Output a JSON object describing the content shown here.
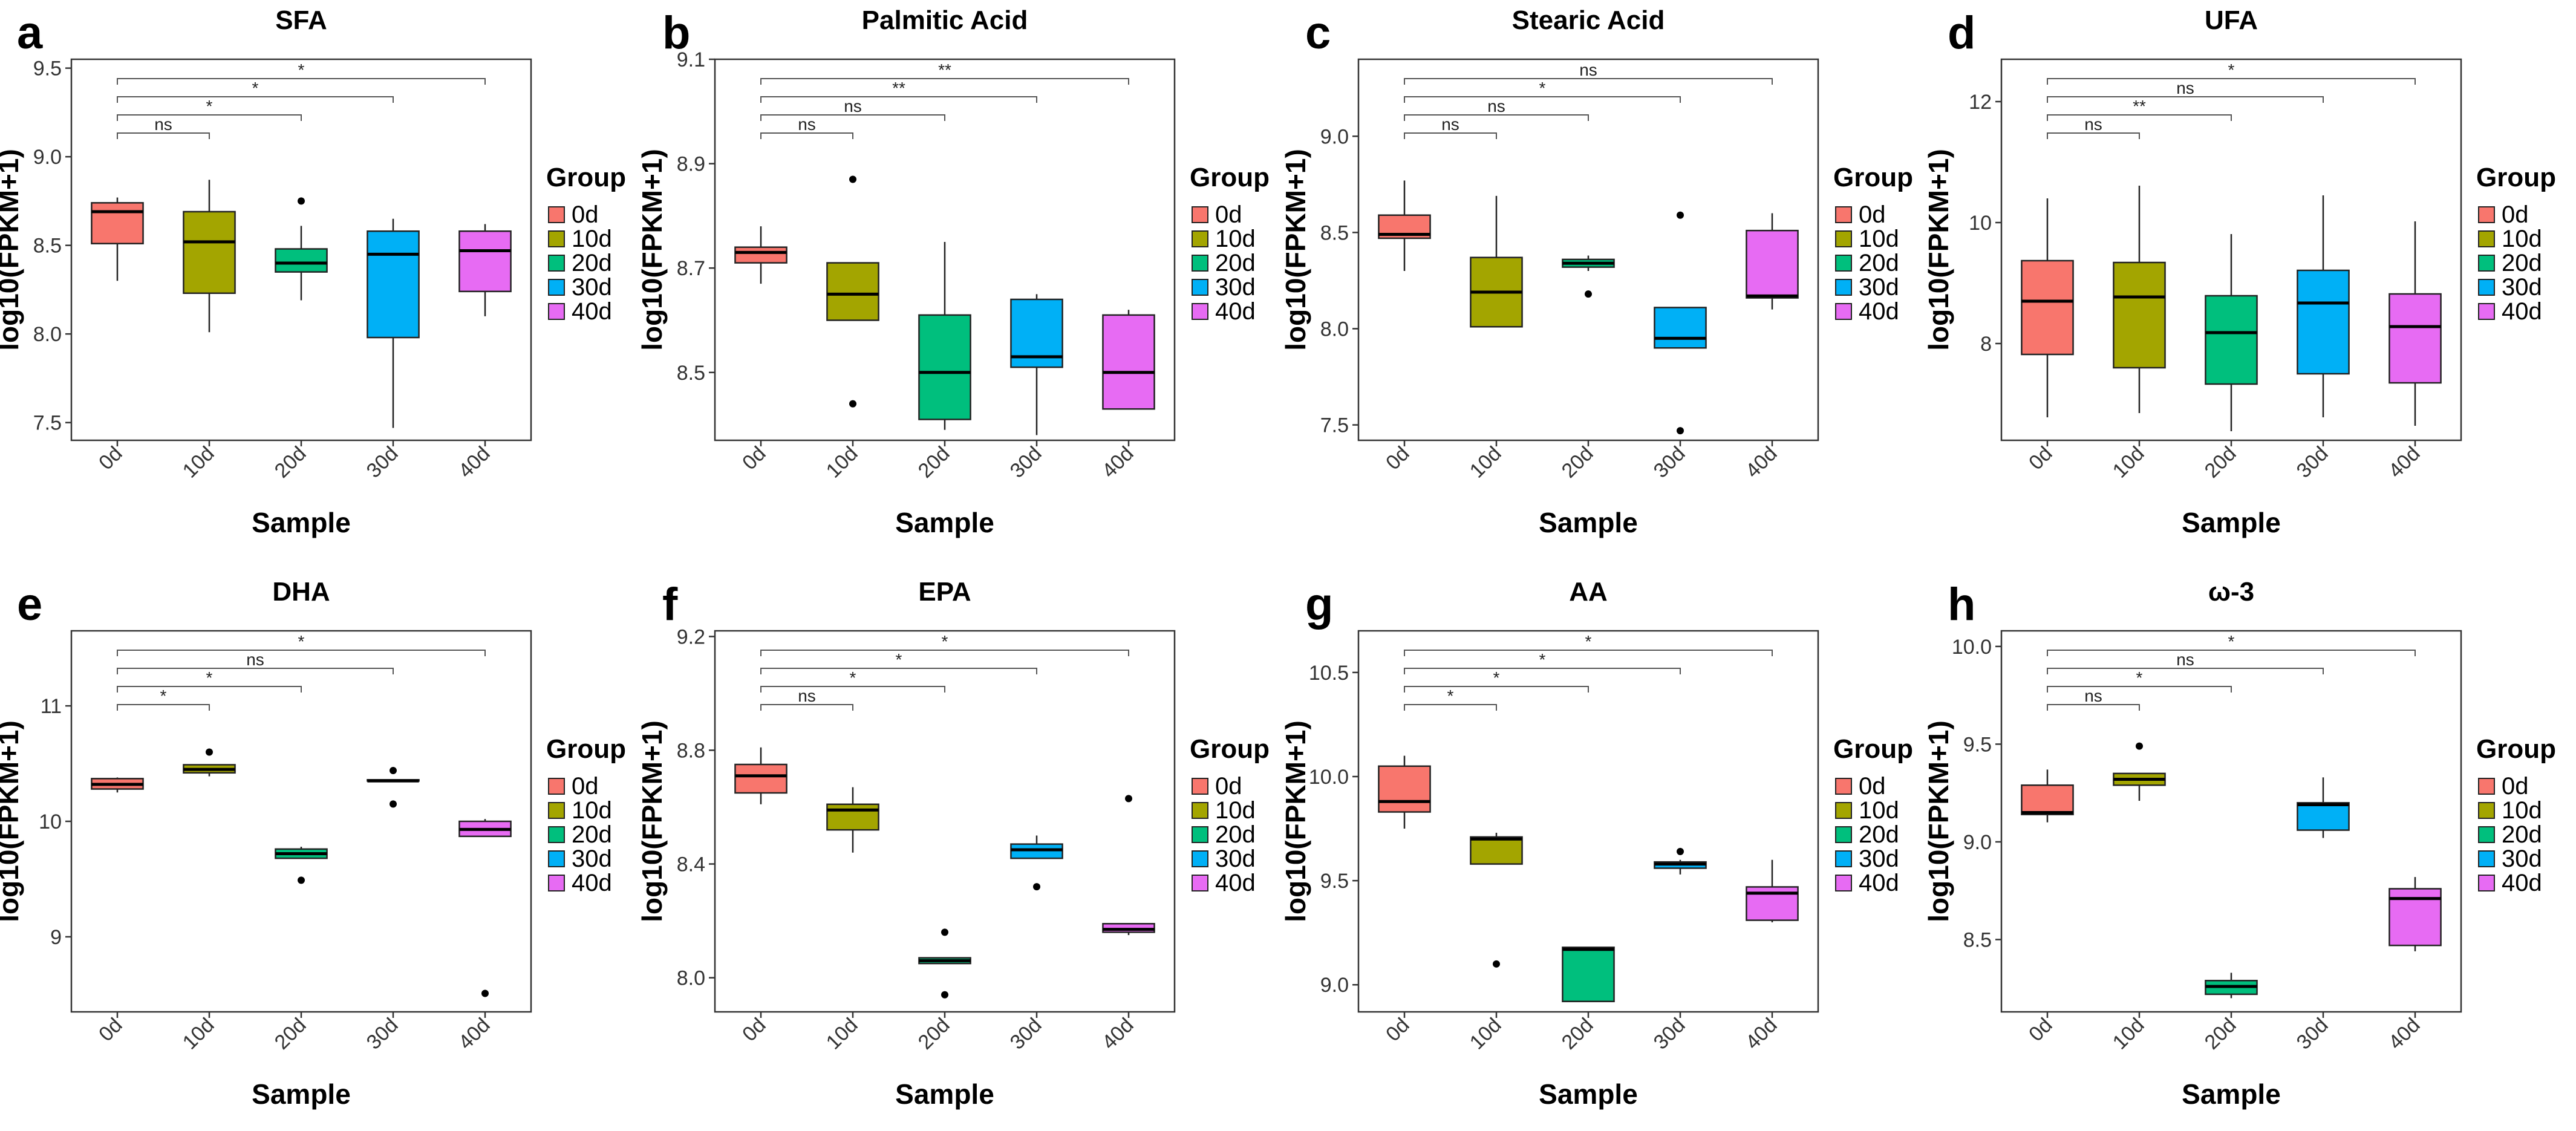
{
  "figure": {
    "group_colors": {
      "0d": "#F8766D",
      "10d": "#A3A500",
      "20d": "#00BF7D",
      "30d": "#00B0F6",
      "40d": "#E76BF3"
    }
  },
  "chart_data": [
    {
      "panel": "a",
      "type": "boxplot",
      "title": "SFA",
      "xlabel": "Sample",
      "ylabel": "log10(FPKM+1)",
      "categories": [
        "0d",
        "10d",
        "20d",
        "30d",
        "40d"
      ],
      "ylim": [
        7.4,
        9.55
      ],
      "yticks": [
        "7.5",
        "8.0",
        "8.5",
        "9.0",
        "9.5"
      ],
      "boxes": [
        {
          "q1": 8.51,
          "median": 8.69,
          "q3": 8.74,
          "whisker_low": 8.3,
          "whisker_high": 8.77,
          "outliers": []
        },
        {
          "q1": 8.23,
          "median": 8.52,
          "q3": 8.69,
          "whisker_low": 8.01,
          "whisker_high": 8.87,
          "outliers": []
        },
        {
          "q1": 8.35,
          "median": 8.4,
          "q3": 8.48,
          "whisker_low": 8.19,
          "whisker_high": 8.61,
          "outliers": [
            8.75
          ]
        },
        {
          "q1": 7.98,
          "median": 8.45,
          "q3": 8.58,
          "whisker_low": 7.47,
          "whisker_high": 8.65,
          "outliers": []
        },
        {
          "q1": 8.24,
          "median": 8.47,
          "q3": 8.58,
          "whisker_low": 8.1,
          "whisker_high": 8.62,
          "outliers": []
        }
      ],
      "comparisons": [
        {
          "from": "0d",
          "to": "10d",
          "label": "ns"
        },
        {
          "from": "0d",
          "to": "20d",
          "label": "*"
        },
        {
          "from": "0d",
          "to": "30d",
          "label": "*"
        },
        {
          "from": "0d",
          "to": "40d",
          "label": "*"
        }
      ],
      "legend": {
        "title": "Group",
        "labels": [
          "0d",
          "10d",
          "20d",
          "30d",
          "40d"
        ]
      }
    },
    {
      "panel": "b",
      "type": "boxplot",
      "title": "Palmitic Acid",
      "xlabel": "Sample",
      "ylabel": "log10(FPKM+1)",
      "categories": [
        "0d",
        "10d",
        "20d",
        "30d",
        "40d"
      ],
      "ylim": [
        8.37,
        9.1
      ],
      "yticks": [
        "8.5",
        "8.7",
        "8.9",
        "9.1"
      ],
      "boxes": [
        {
          "q1": 8.71,
          "median": 8.73,
          "q3": 8.74,
          "whisker_low": 8.67,
          "whisker_high": 8.78,
          "outliers": []
        },
        {
          "q1": 8.6,
          "median": 8.65,
          "q3": 8.71,
          "whisker_low": 8.6,
          "whisker_high": 8.71,
          "outliers": [
            8.44,
            8.87
          ]
        },
        {
          "q1": 8.41,
          "median": 8.5,
          "q3": 8.61,
          "whisker_low": 8.39,
          "whisker_high": 8.75,
          "outliers": []
        },
        {
          "q1": 8.51,
          "median": 8.53,
          "q3": 8.64,
          "whisker_low": 8.38,
          "whisker_high": 8.65,
          "outliers": []
        },
        {
          "q1": 8.43,
          "median": 8.5,
          "q3": 8.61,
          "whisker_low": 8.43,
          "whisker_high": 8.62,
          "outliers": []
        }
      ],
      "comparisons": [
        {
          "from": "0d",
          "to": "10d",
          "label": "ns"
        },
        {
          "from": "0d",
          "to": "20d",
          "label": "ns"
        },
        {
          "from": "0d",
          "to": "30d",
          "label": "**"
        },
        {
          "from": "0d",
          "to": "40d",
          "label": "**"
        }
      ],
      "legend": {
        "title": "Group",
        "labels": [
          "0d",
          "10d",
          "20d",
          "30d",
          "40d"
        ]
      }
    },
    {
      "panel": "c",
      "type": "boxplot",
      "title": "Stearic Acid",
      "xlabel": "Sample",
      "ylabel": "log10(FPKM+1)",
      "categories": [
        "0d",
        "10d",
        "20d",
        "30d",
        "40d"
      ],
      "ylim": [
        7.42,
        9.4
      ],
      "yticks": [
        "7.5",
        "8.0",
        "8.5",
        "9.0"
      ],
      "boxes": [
        {
          "q1": 8.47,
          "median": 8.49,
          "q3": 8.59,
          "whisker_low": 8.3,
          "whisker_high": 8.77,
          "outliers": []
        },
        {
          "q1": 8.01,
          "median": 8.19,
          "q3": 8.37,
          "whisker_low": 8.01,
          "whisker_high": 8.69,
          "outliers": []
        },
        {
          "q1": 8.32,
          "median": 8.34,
          "q3": 8.36,
          "whisker_low": 8.3,
          "whisker_high": 8.38,
          "outliers": [
            8.18
          ]
        },
        {
          "q1": 7.9,
          "median": 7.95,
          "q3": 8.11,
          "whisker_low": 7.9,
          "whisker_high": 8.11,
          "outliers": [
            7.47,
            8.59
          ]
        },
        {
          "q1": 8.16,
          "median": 8.17,
          "q3": 8.51,
          "whisker_low": 8.1,
          "whisker_high": 8.6,
          "outliers": []
        }
      ],
      "comparisons": [
        {
          "from": "0d",
          "to": "10d",
          "label": "ns"
        },
        {
          "from": "0d",
          "to": "20d",
          "label": "ns"
        },
        {
          "from": "0d",
          "to": "30d",
          "label": "*"
        },
        {
          "from": "0d",
          "to": "40d",
          "label": "ns"
        }
      ],
      "legend": {
        "title": "Group",
        "labels": [
          "0d",
          "10d",
          "20d",
          "30d",
          "40d"
        ]
      }
    },
    {
      "panel": "d",
      "type": "boxplot",
      "title": "UFA",
      "xlabel": "Sample",
      "ylabel": "log10(FPKM+1)",
      "categories": [
        "0d",
        "10d",
        "20d",
        "30d",
        "40d"
      ],
      "ylim": [
        6.4,
        12.7
      ],
      "yticks": [
        "8",
        "10",
        "12"
      ],
      "boxes": [
        {
          "q1": 7.82,
          "median": 8.7,
          "q3": 9.37,
          "whisker_low": 6.78,
          "whisker_high": 10.4,
          "outliers": []
        },
        {
          "q1": 7.6,
          "median": 8.77,
          "q3": 9.34,
          "whisker_low": 6.85,
          "whisker_high": 10.61,
          "outliers": []
        },
        {
          "q1": 7.33,
          "median": 8.18,
          "q3": 8.79,
          "whisker_low": 6.55,
          "whisker_high": 9.81,
          "outliers": []
        },
        {
          "q1": 7.5,
          "median": 8.67,
          "q3": 9.21,
          "whisker_low": 6.78,
          "whisker_high": 10.45,
          "outliers": []
        },
        {
          "q1": 7.35,
          "median": 8.28,
          "q3": 8.82,
          "whisker_low": 6.64,
          "whisker_high": 10.02,
          "outliers": []
        }
      ],
      "comparisons": [
        {
          "from": "0d",
          "to": "10d",
          "label": "ns"
        },
        {
          "from": "0d",
          "to": "20d",
          "label": "**"
        },
        {
          "from": "0d",
          "to": "30d",
          "label": "ns"
        },
        {
          "from": "0d",
          "to": "40d",
          "label": "*"
        }
      ],
      "legend": {
        "title": "Group",
        "labels": [
          "0d",
          "10d",
          "20d",
          "30d",
          "40d"
        ]
      }
    },
    {
      "panel": "e",
      "type": "boxplot",
      "title": "DHA",
      "xlabel": "Sample",
      "ylabel": "log10(FPKM+1)",
      "categories": [
        "0d",
        "10d",
        "20d",
        "30d",
        "40d"
      ],
      "ylim": [
        8.35,
        11.65
      ],
      "yticks": [
        "9",
        "10",
        "11"
      ],
      "boxes": [
        {
          "q1": 10.28,
          "median": 10.32,
          "q3": 10.37,
          "whisker_low": 10.25,
          "whisker_high": 10.38,
          "outliers": []
        },
        {
          "q1": 10.42,
          "median": 10.45,
          "q3": 10.49,
          "whisker_low": 10.39,
          "whisker_high": 10.49,
          "outliers": [
            10.6
          ]
        },
        {
          "q1": 9.68,
          "median": 9.72,
          "q3": 9.76,
          "whisker_low": 9.68,
          "whisker_high": 9.78,
          "outliers": [
            9.49
          ]
        },
        {
          "q1": 10.35,
          "median": 10.35,
          "q3": 10.36,
          "whisker_low": 10.35,
          "whisker_high": 10.36,
          "outliers": [
            10.15,
            10.44
          ]
        },
        {
          "q1": 9.87,
          "median": 9.93,
          "q3": 10.0,
          "whisker_low": 9.87,
          "whisker_high": 10.02,
          "outliers": [
            8.51
          ]
        }
      ],
      "comparisons": [
        {
          "from": "0d",
          "to": "10d",
          "label": "*"
        },
        {
          "from": "0d",
          "to": "20d",
          "label": "*"
        },
        {
          "from": "0d",
          "to": "30d",
          "label": "ns"
        },
        {
          "from": "0d",
          "to": "40d",
          "label": "*"
        }
      ],
      "legend": {
        "title": "Group",
        "labels": [
          "0d",
          "10d",
          "20d",
          "30d",
          "40d"
        ]
      }
    },
    {
      "panel": "f",
      "type": "boxplot",
      "title": "EPA",
      "xlabel": "Sample",
      "ylabel": "log10(FPKM+1)",
      "categories": [
        "0d",
        "10d",
        "20d",
        "30d",
        "40d"
      ],
      "ylim": [
        7.88,
        9.22
      ],
      "yticks": [
        "8.0",
        "8.4",
        "8.8",
        "9.2"
      ],
      "boxes": [
        {
          "q1": 8.65,
          "median": 8.71,
          "q3": 8.75,
          "whisker_low": 8.61,
          "whisker_high": 8.81,
          "outliers": []
        },
        {
          "q1": 8.52,
          "median": 8.59,
          "q3": 8.61,
          "whisker_low": 8.44,
          "whisker_high": 8.67,
          "outliers": []
        },
        {
          "q1": 8.05,
          "median": 8.06,
          "q3": 8.07,
          "whisker_low": 8.05,
          "whisker_high": 8.07,
          "outliers": [
            7.94,
            8.16
          ]
        },
        {
          "q1": 8.42,
          "median": 8.45,
          "q3": 8.47,
          "whisker_low": 8.42,
          "whisker_high": 8.5,
          "outliers": [
            8.32
          ]
        },
        {
          "q1": 8.16,
          "median": 8.17,
          "q3": 8.19,
          "whisker_low": 8.15,
          "whisker_high": 8.19,
          "outliers": [
            8.63
          ]
        }
      ],
      "comparisons": [
        {
          "from": "0d",
          "to": "10d",
          "label": "ns"
        },
        {
          "from": "0d",
          "to": "20d",
          "label": "*"
        },
        {
          "from": "0d",
          "to": "30d",
          "label": "*"
        },
        {
          "from": "0d",
          "to": "40d",
          "label": "*"
        }
      ],
      "legend": {
        "title": "Group",
        "labels": [
          "0d",
          "10d",
          "20d",
          "30d",
          "40d"
        ]
      }
    },
    {
      "panel": "g",
      "type": "boxplot",
      "title": "AA",
      "xlabel": "Sample",
      "ylabel": "log10(FPKM+1)",
      "categories": [
        "0d",
        "10d",
        "20d",
        "30d",
        "40d"
      ],
      "ylim": [
        8.87,
        10.7
      ],
      "yticks": [
        "9.0",
        "9.5",
        "10.0",
        "10.5"
      ],
      "boxes": [
        {
          "q1": 9.83,
          "median": 9.88,
          "q3": 10.05,
          "whisker_low": 9.75,
          "whisker_high": 10.1,
          "outliers": []
        },
        {
          "q1": 9.58,
          "median": 9.7,
          "q3": 9.71,
          "whisker_low": 9.58,
          "whisker_high": 9.73,
          "outliers": [
            9.1
          ]
        },
        {
          "q1": 8.92,
          "median": 9.17,
          "q3": 9.18,
          "whisker_low": 8.92,
          "whisker_high": 9.18,
          "outliers": []
        },
        {
          "q1": 9.56,
          "median": 9.58,
          "q3": 9.59,
          "whisker_low": 9.53,
          "whisker_high": 9.6,
          "outliers": [
            9.64
          ]
        },
        {
          "q1": 9.31,
          "median": 9.44,
          "q3": 9.47,
          "whisker_low": 9.3,
          "whisker_high": 9.6,
          "outliers": []
        }
      ],
      "comparisons": [
        {
          "from": "0d",
          "to": "10d",
          "label": "*"
        },
        {
          "from": "0d",
          "to": "20d",
          "label": "*"
        },
        {
          "from": "0d",
          "to": "30d",
          "label": "*"
        },
        {
          "from": "0d",
          "to": "40d",
          "label": "*"
        }
      ],
      "legend": {
        "title": "Group",
        "labels": [
          "0d",
          "10d",
          "20d",
          "30d",
          "40d"
        ]
      }
    },
    {
      "panel": "h",
      "type": "boxplot",
      "title": "ω-3",
      "xlabel": "Sample",
      "ylabel": "log10(FPKM+1)",
      "categories": [
        "0d",
        "10d",
        "20d",
        "30d",
        "40d"
      ],
      "ylim": [
        8.13,
        10.08
      ],
      "yticks": [
        "8.5",
        "9.0",
        "9.5",
        "10.0"
      ],
      "boxes": [
        {
          "q1": 9.14,
          "median": 9.15,
          "q3": 9.29,
          "whisker_low": 9.1,
          "whisker_high": 9.37,
          "outliers": []
        },
        {
          "q1": 9.29,
          "median": 9.32,
          "q3": 9.35,
          "whisker_low": 9.21,
          "whisker_high": 9.35,
          "outliers": [
            9.49
          ]
        },
        {
          "q1": 8.22,
          "median": 8.26,
          "q3": 8.29,
          "whisker_low": 8.2,
          "whisker_high": 8.33,
          "outliers": []
        },
        {
          "q1": 9.06,
          "median": 9.19,
          "q3": 9.2,
          "whisker_low": 9.02,
          "whisker_high": 9.33,
          "outliers": []
        },
        {
          "q1": 8.47,
          "median": 8.71,
          "q3": 8.76,
          "whisker_low": 8.44,
          "whisker_high": 8.82,
          "outliers": []
        }
      ],
      "comparisons": [
        {
          "from": "0d",
          "to": "10d",
          "label": "ns"
        },
        {
          "from": "0d",
          "to": "20d",
          "label": "*"
        },
        {
          "from": "0d",
          "to": "30d",
          "label": "ns"
        },
        {
          "from": "0d",
          "to": "40d",
          "label": "*"
        }
      ],
      "legend": {
        "title": "Group",
        "labels": [
          "0d",
          "10d",
          "20d",
          "30d",
          "40d"
        ]
      }
    }
  ]
}
